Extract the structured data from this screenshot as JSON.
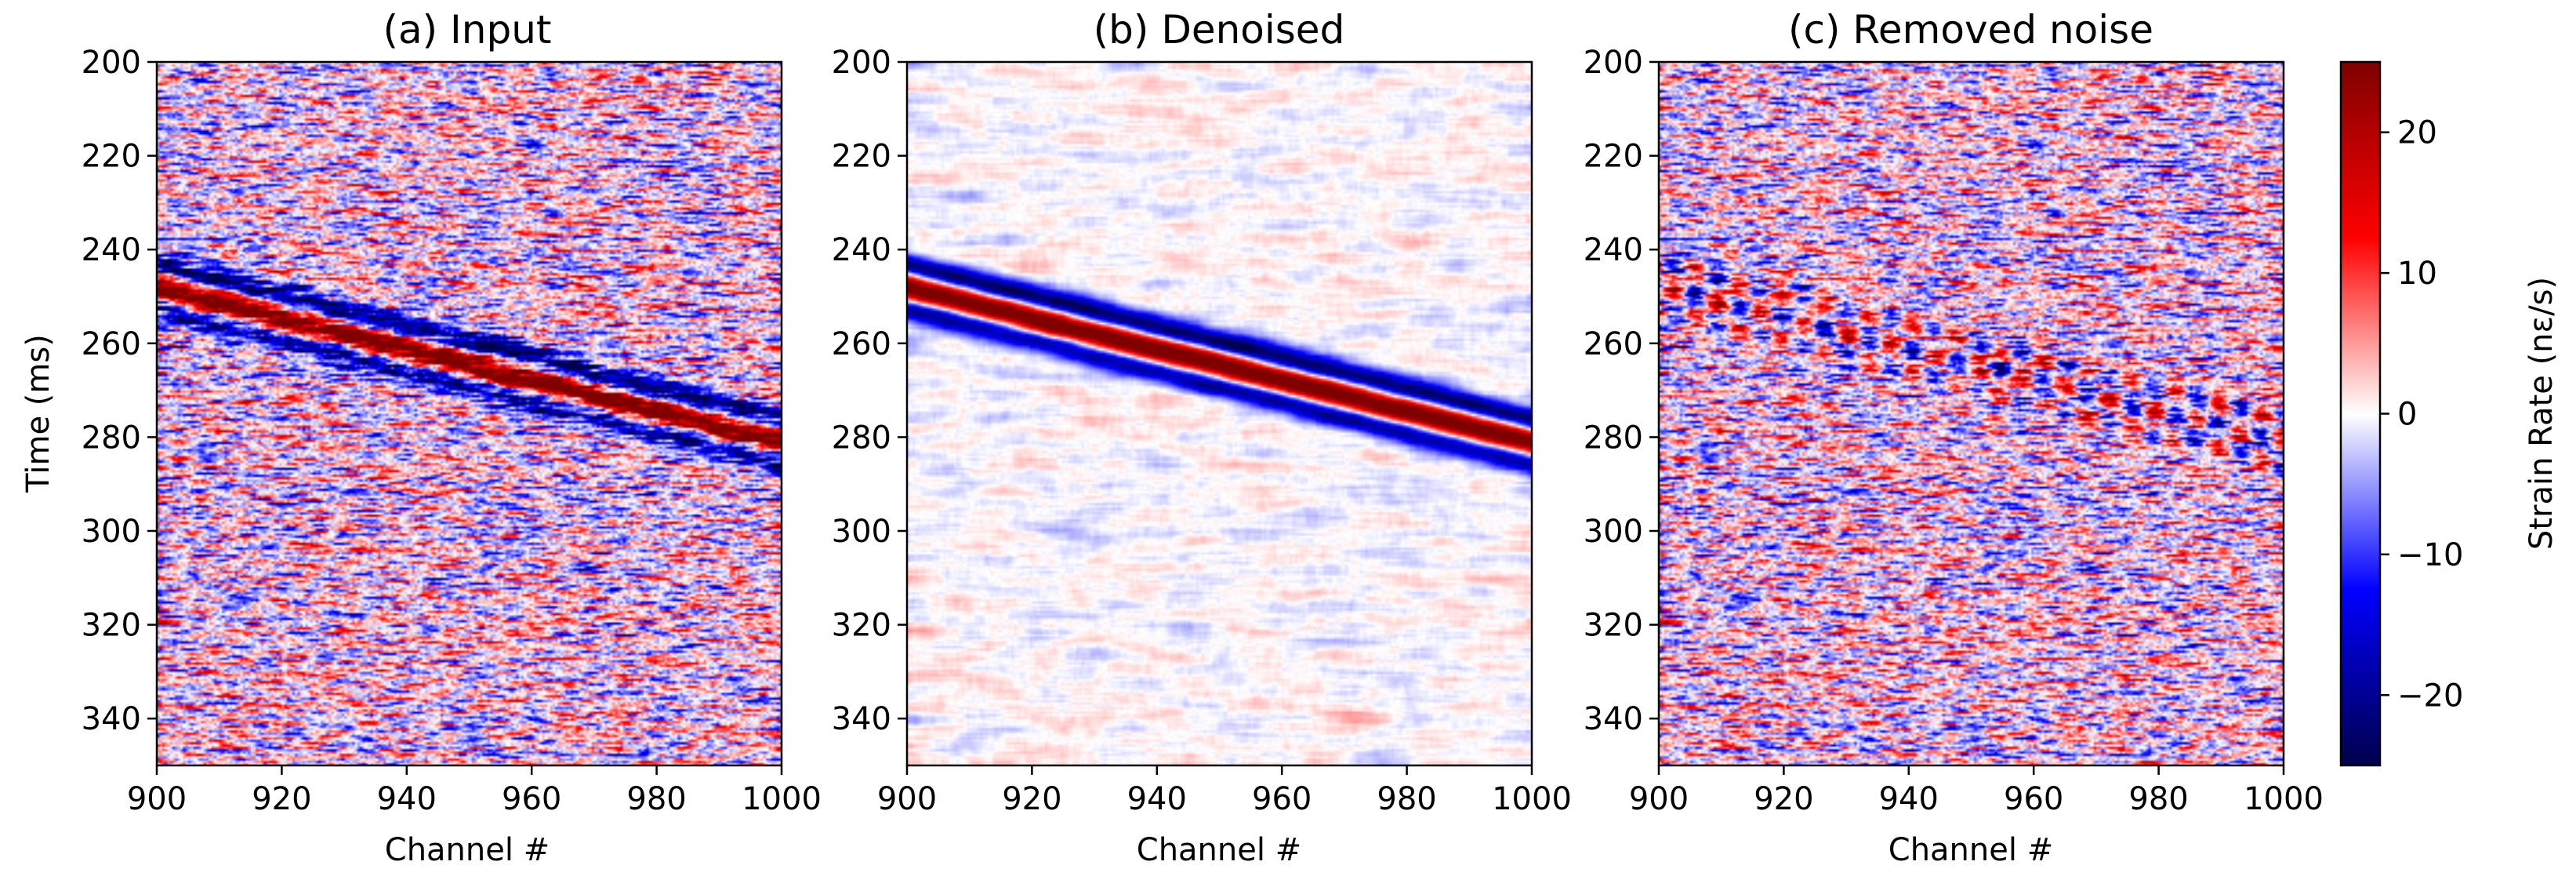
{
  "chart_data": [
    {
      "type": "heatmap",
      "title": "(a) Input",
      "xlabel": "Channel #",
      "ylabel": "Time (ms)",
      "xlim": [
        900,
        1000
      ],
      "ylim": [
        350,
        200
      ],
      "xticks": [
        "900",
        "920",
        "940",
        "960",
        "980",
        "1000"
      ],
      "yticks": [
        "200",
        "220",
        "240",
        "260",
        "280",
        "300",
        "320",
        "340"
      ],
      "content": "signal_plus_noise",
      "event": {
        "t_start_ms": 248,
        "t_end_ms": 281,
        "x_start": 900,
        "x_end": 1000
      }
    },
    {
      "type": "heatmap",
      "title": "(b) Denoised",
      "xlabel": "Channel #",
      "ylabel": "",
      "xlim": [
        900,
        1000
      ],
      "ylim": [
        350,
        200
      ],
      "xticks": [
        "900",
        "920",
        "940",
        "960",
        "980",
        "1000"
      ],
      "yticks": [
        "200",
        "220",
        "240",
        "260",
        "280",
        "300",
        "320",
        "340"
      ],
      "content": "signal",
      "event": {
        "t_start_ms": 248,
        "t_end_ms": 281,
        "x_start": 900,
        "x_end": 1000
      }
    },
    {
      "type": "heatmap",
      "title": "(c) Removed noise",
      "xlabel": "Channel #",
      "ylabel": "",
      "xlim": [
        900,
        1000
      ],
      "ylim": [
        350,
        200
      ],
      "xticks": [
        "900",
        "920",
        "940",
        "960",
        "980",
        "1000"
      ],
      "yticks": [
        "200",
        "220",
        "240",
        "260",
        "280",
        "300",
        "320",
        "340"
      ],
      "content": "noise_with_residual",
      "event": {
        "t_start_ms": 248,
        "t_end_ms": 281,
        "x_start": 900,
        "x_end": 1000
      }
    }
  ],
  "colorbar": {
    "label": "Strain Rate (nε/s)",
    "range": [
      -25,
      25
    ],
    "ticks": [
      {
        "value": 20,
        "label": "20"
      },
      {
        "value": 10,
        "label": "10"
      },
      {
        "value": 0,
        "label": "0"
      },
      {
        "value": -10,
        "label": "−10"
      },
      {
        "value": -20,
        "label": "−20"
      }
    ],
    "colormap": "seismic",
    "colors": {
      "low": "#00004c",
      "mid_low": "#0000ff",
      "center": "#ffffff",
      "mid_high": "#ff0000",
      "high": "#800000"
    }
  }
}
